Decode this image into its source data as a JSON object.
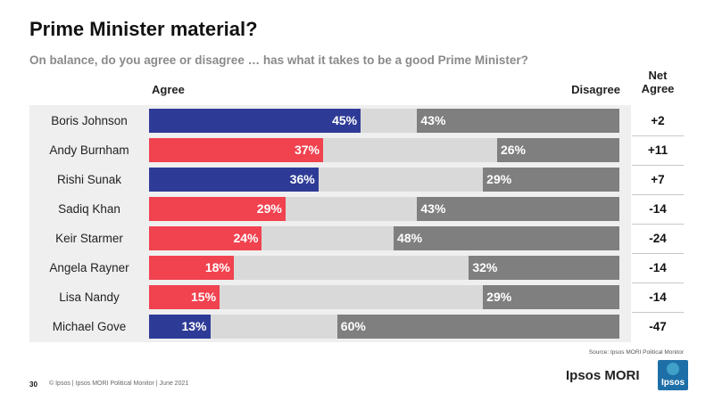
{
  "chart_data": {
    "type": "bar",
    "orientation": "horizontal-diverging",
    "title": "Prime Minister material?",
    "subtitle": "On balance, do you agree or disagree … has what it takes to be a good Prime Minister?",
    "agree_header": "Agree",
    "disagree_header": "Disagree",
    "net_header": [
      "Net",
      "Agree"
    ],
    "categories": [
      "Boris Johnson",
      "Andy Burnham",
      "Rishi Sunak",
      "Sadiq Khan",
      "Keir Starmer",
      "Angela Rayner",
      "Lisa Nandy",
      "Michael Gove"
    ],
    "series": [
      {
        "name": "Agree",
        "values": [
          45,
          37,
          36,
          29,
          24,
          18,
          15,
          13
        ],
        "labels": [
          "45%",
          "37%",
          "36%",
          "29%",
          "24%",
          "18%",
          "15%",
          "13%"
        ]
      },
      {
        "name": "Disagree",
        "values": [
          43,
          26,
          29,
          43,
          48,
          32,
          29,
          60
        ],
        "labels": [
          "43%",
          "26%",
          "29%",
          "43%",
          "48%",
          "32%",
          "29%",
          "60%"
        ]
      }
    ],
    "net": [
      "+2",
      "+11",
      "+7",
      "-14",
      "-24",
      "-14",
      "-14",
      "-47"
    ],
    "party": [
      "con",
      "lab",
      "con",
      "lab",
      "lab",
      "lab",
      "lab",
      "con"
    ],
    "xlim": [
      0,
      100
    ]
  },
  "colors": {
    "con": "#2e3b96",
    "lab": "#f0424f",
    "disagree": "#7f7f7f",
    "neither": "#d9d9d9",
    "logo": "#1e6fa8"
  },
  "footer": {
    "source": "Source: Ipsos MORI Political Monitor",
    "page_number": "30",
    "copyright": "© Ipsos | Ipsos MORI Political Monitor | June 2021",
    "brand": "Ipsos MORI",
    "logo_text": "Ipsos"
  }
}
